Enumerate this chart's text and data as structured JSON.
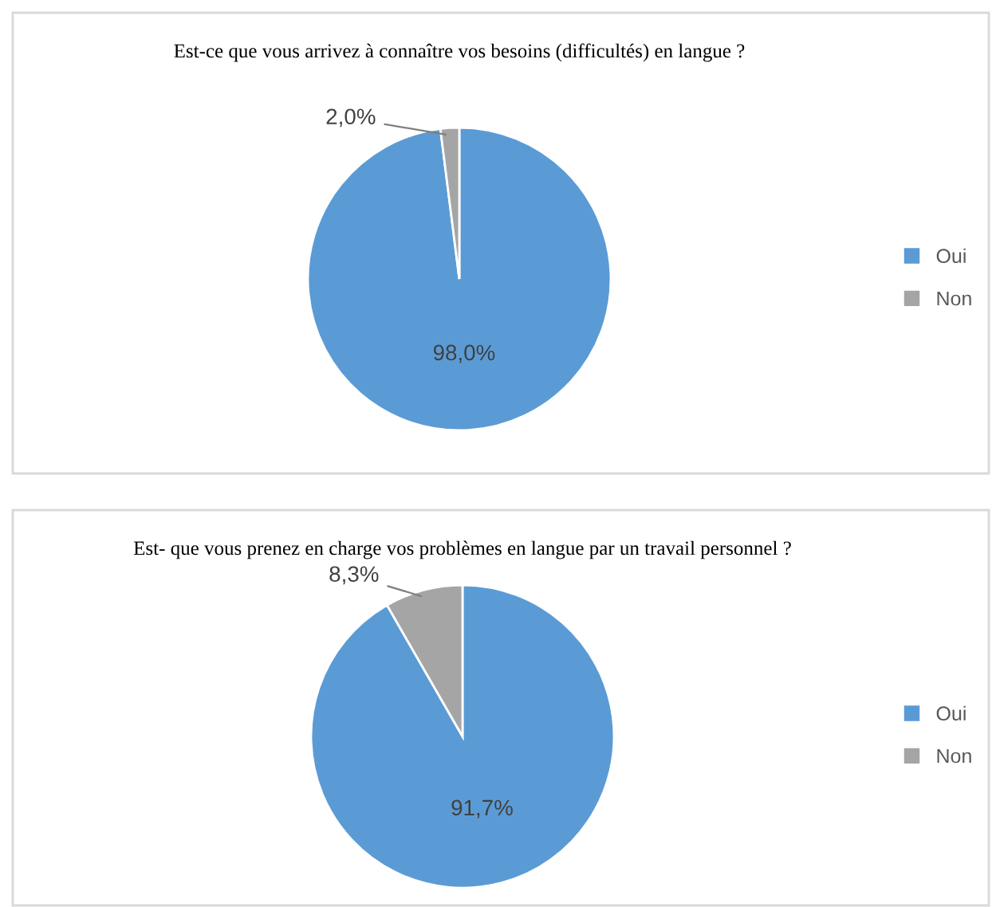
{
  "chart_data": [
    {
      "type": "pie",
      "title": "Est-ce que vous arrivez à connaître vos besoins (difficultés) en langue ?",
      "categories": [
        "Oui",
        "Non"
      ],
      "values": [
        98.0,
        2.0
      ],
      "colors": [
        "#5b9bd5",
        "#a5a5a5"
      ],
      "value_labels": [
        "98,0%",
        "2,0%"
      ],
      "legend": "right"
    },
    {
      "type": "pie",
      "title": "Est- que vous prenez en charge vos problèmes en langue par un travail personnel ?",
      "categories": [
        "Oui",
        "Non"
      ],
      "values": [
        91.7,
        8.3
      ],
      "colors": [
        "#5b9bd5",
        "#a5a5a5"
      ],
      "value_labels": [
        "91,7%",
        "8,3%"
      ],
      "legend": "right"
    }
  ]
}
